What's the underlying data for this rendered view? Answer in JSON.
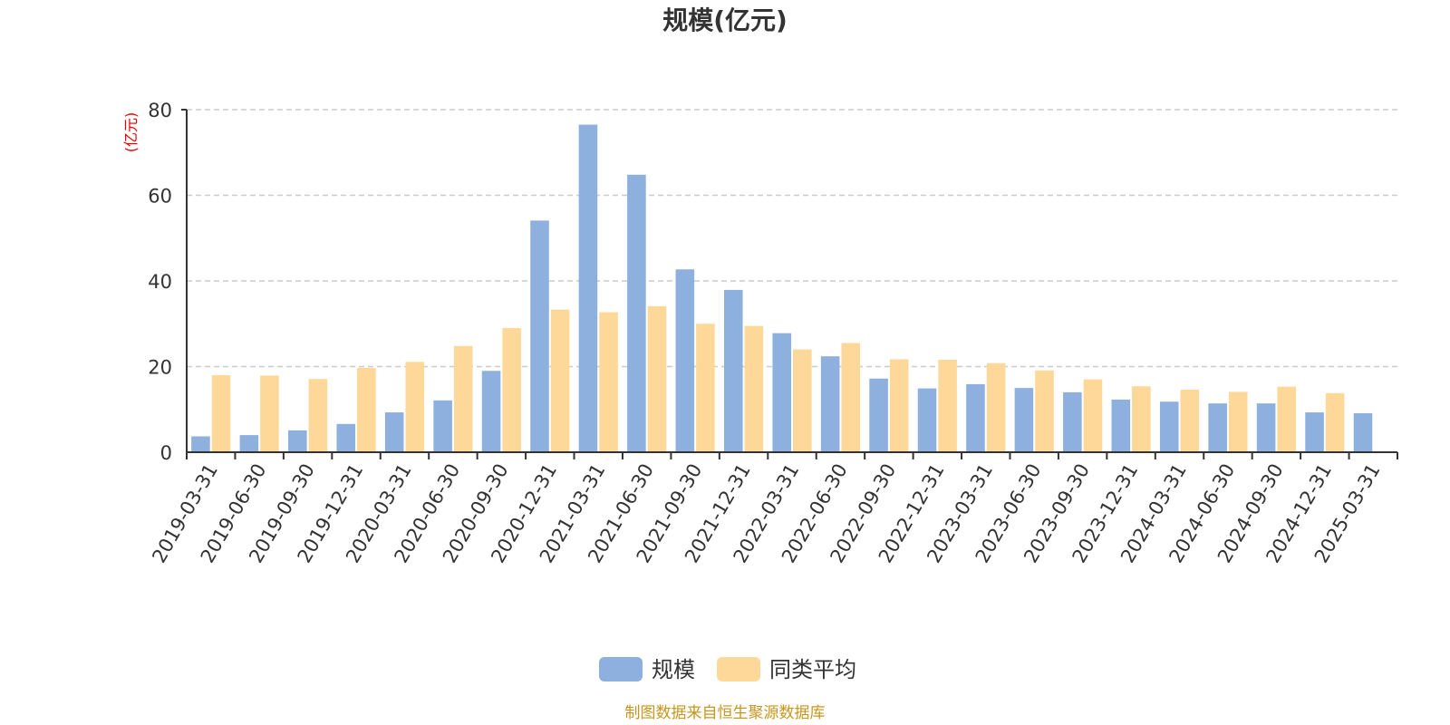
{
  "chart_data": {
    "type": "bar",
    "title": "规模(亿元)",
    "ylabel": "(亿元)",
    "ylim": [
      0,
      80
    ],
    "yticks": [
      0,
      20,
      40,
      60,
      80
    ],
    "grid": true,
    "legend_position": "bottom",
    "categories": [
      "2019-03-31",
      "2019-06-30",
      "2019-09-30",
      "2019-12-31",
      "2020-03-31",
      "2020-06-30",
      "2020-09-30",
      "2020-12-31",
      "2021-03-31",
      "2021-06-30",
      "2021-09-30",
      "2021-12-31",
      "2022-03-31",
      "2022-06-30",
      "2022-09-30",
      "2022-12-31",
      "2023-03-31",
      "2023-06-30",
      "2023-09-30",
      "2023-12-31",
      "2024-03-31",
      "2024-06-30",
      "2024-09-30",
      "2024-12-31",
      "2025-03-31"
    ],
    "series": [
      {
        "name": "规模",
        "color": "#8eb0de",
        "values": [
          3.7,
          4.0,
          5.1,
          6.6,
          9.3,
          12.1,
          19.0,
          54.1,
          76.5,
          64.8,
          42.7,
          37.9,
          27.8,
          22.4,
          17.2,
          14.9,
          15.9,
          15.0,
          14.0,
          12.3,
          11.8,
          11.4,
          11.4,
          9.3,
          9.1
        ]
      },
      {
        "name": "同类平均",
        "color": "#fdd898",
        "values": [
          18.0,
          17.9,
          17.1,
          19.7,
          21.1,
          24.8,
          29.0,
          33.3,
          32.7,
          34.1,
          30.0,
          29.5,
          24.0,
          25.5,
          21.7,
          21.6,
          20.8,
          19.1,
          17.0,
          15.4,
          14.6,
          14.1,
          15.3,
          13.8,
          null
        ]
      }
    ]
  },
  "footer": {
    "source": "制图数据来自恒生聚源数据库"
  }
}
